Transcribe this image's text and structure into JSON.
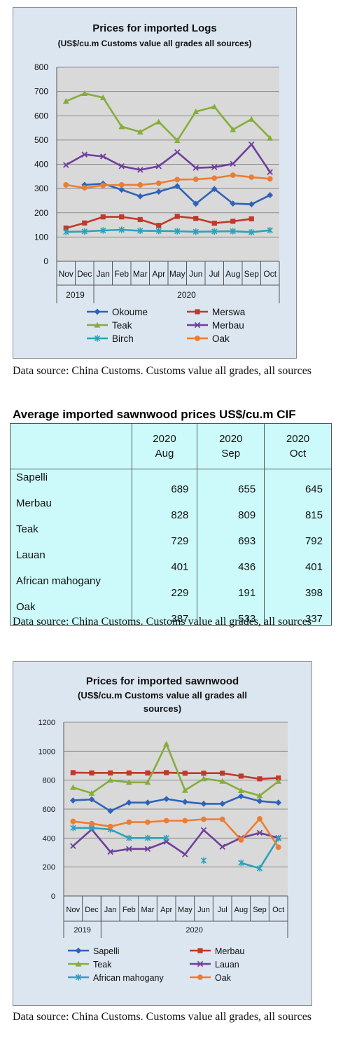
{
  "chart1": {
    "title": "Prices for imported Logs",
    "subtitle": "(US$/cu.m Customs value all grades all sources)",
    "source": "Data source: China Customs. Customs value all grades, all sources"
  },
  "table": {
    "title": "Average imported sawnwood prices US$/cu.m CIF",
    "years": [
      "2020",
      "2020",
      "2020"
    ],
    "months": [
      "Aug",
      "Sep",
      "Oct"
    ],
    "rows": [
      {
        "name": "Sapelli",
        "values": [
          "689",
          "655",
          "645"
        ]
      },
      {
        "name": "Merbau",
        "values": [
          "828",
          "809",
          "815"
        ]
      },
      {
        "name": "Teak",
        "values": [
          "729",
          "693",
          "792"
        ]
      },
      {
        "name": "Lauan",
        "values": [
          "401",
          "436",
          "401"
        ]
      },
      {
        "name": "African mahogany",
        "values": [
          "229",
          "191",
          "398"
        ]
      },
      {
        "name": "Oak",
        "values": [
          "387",
          "533",
          "337"
        ]
      }
    ],
    "source": "Data source: China Customs. Customs value all grades, all sources"
  },
  "chart2": {
    "title": "Prices for imported sawnwood",
    "subtitle_line1": "(US$/cu.m Customs value all grades all",
    "subtitle_line2": "sources)",
    "source": "Data source: China Customs. Customs value all grades, all sources"
  },
  "chart_data": [
    {
      "type": "line",
      "title": "Prices for imported Logs",
      "subtitle": "(US$/cu.m Customs value all grades all sources)",
      "categories": [
        "Nov",
        "Dec",
        "Jan",
        "Feb",
        "Mar",
        "Apr",
        "May",
        "Jun",
        "Jul",
        "Aug",
        "Sep",
        "Oct"
      ],
      "year_groups": [
        {
          "label": "2019",
          "span": 2
        },
        {
          "label": "2020",
          "span": 10
        }
      ],
      "ylim": [
        0,
        800
      ],
      "yticks": [
        0,
        100,
        200,
        300,
        400,
        500,
        600,
        700,
        800
      ],
      "grid": true,
      "legend_position": "bottom",
      "series": [
        {
          "name": "Okoume",
          "color": "#2e63b8",
          "marker": "diamond",
          "values": [
            null,
            315,
            320,
            295,
            268,
            287,
            310,
            237,
            298,
            238,
            235,
            273
          ]
        },
        {
          "name": "Merswa",
          "color": "#c0392b",
          "marker": "square",
          "values": [
            137,
            158,
            183,
            183,
            172,
            148,
            185,
            177,
            157,
            165,
            175,
            null
          ]
        },
        {
          "name": "Teak",
          "color": "#86ad3c",
          "marker": "triangle",
          "values": [
            660,
            692,
            675,
            555,
            533,
            575,
            498,
            617,
            637,
            543,
            586,
            508
          ]
        },
        {
          "name": "Merbau",
          "color": "#6f3f9b",
          "marker": "x",
          "values": [
            397,
            440,
            432,
            392,
            377,
            392,
            450,
            385,
            388,
            402,
            482,
            368
          ]
        },
        {
          "name": "Birch",
          "color": "#2ea1b9",
          "marker": "star",
          "values": [
            121,
            123,
            127,
            130,
            126,
            125,
            124,
            122,
            123,
            124,
            120,
            128
          ]
        },
        {
          "name": "Oak",
          "color": "#ed7d31",
          "marker": "circle",
          "values": [
            315,
            303,
            313,
            315,
            315,
            322,
            337,
            338,
            343,
            355,
            347,
            340
          ]
        }
      ]
    },
    {
      "type": "line",
      "title": "Prices for imported sawnwood",
      "subtitle": "(US$/cu.m Customs value all grades all sources)",
      "categories": [
        "Nov",
        "Dec",
        "Jan",
        "Feb",
        "Mar",
        "Apr",
        "May",
        "Jun",
        "Jul",
        "Aug",
        "Sep",
        "Oct"
      ],
      "year_groups": [
        {
          "label": "2019",
          "span": 2
        },
        {
          "label": "2020",
          "span": 10
        }
      ],
      "ylim": [
        0,
        1200
      ],
      "yticks": [
        0,
        200,
        400,
        600,
        800,
        1000,
        1200
      ],
      "grid": true,
      "legend_position": "bottom",
      "series": [
        {
          "name": "Sapelli",
          "color": "#2e63b8",
          "marker": "diamond",
          "values": [
            660,
            667,
            587,
            645,
            645,
            670,
            650,
            637,
            637,
            689,
            655,
            645
          ]
        },
        {
          "name": "Merbau",
          "color": "#c0392b",
          "marker": "square",
          "values": [
            852,
            850,
            850,
            850,
            850,
            852,
            848,
            848,
            848,
            828,
            809,
            815
          ]
        },
        {
          "name": "Teak",
          "color": "#86ad3c",
          "marker": "triangle",
          "values": [
            750,
            710,
            800,
            785,
            785,
            1050,
            730,
            810,
            793,
            729,
            693,
            792
          ]
        },
        {
          "name": "Lauan",
          "color": "#6f3f9b",
          "marker": "x",
          "values": [
            345,
            460,
            305,
            325,
            325,
            375,
            288,
            455,
            340,
            401,
            436,
            401
          ]
        },
        {
          "name": "African mahogany",
          "color": "#2ea1b9",
          "marker": "star",
          "values": [
            470,
            470,
            460,
            400,
            400,
            400,
            null,
            245,
            null,
            229,
            191,
            398
          ]
        },
        {
          "name": "Oak",
          "color": "#ed7d31",
          "marker": "circle",
          "values": [
            515,
            500,
            480,
            510,
            510,
            520,
            520,
            530,
            530,
            387,
            533,
            337
          ]
        }
      ]
    }
  ]
}
